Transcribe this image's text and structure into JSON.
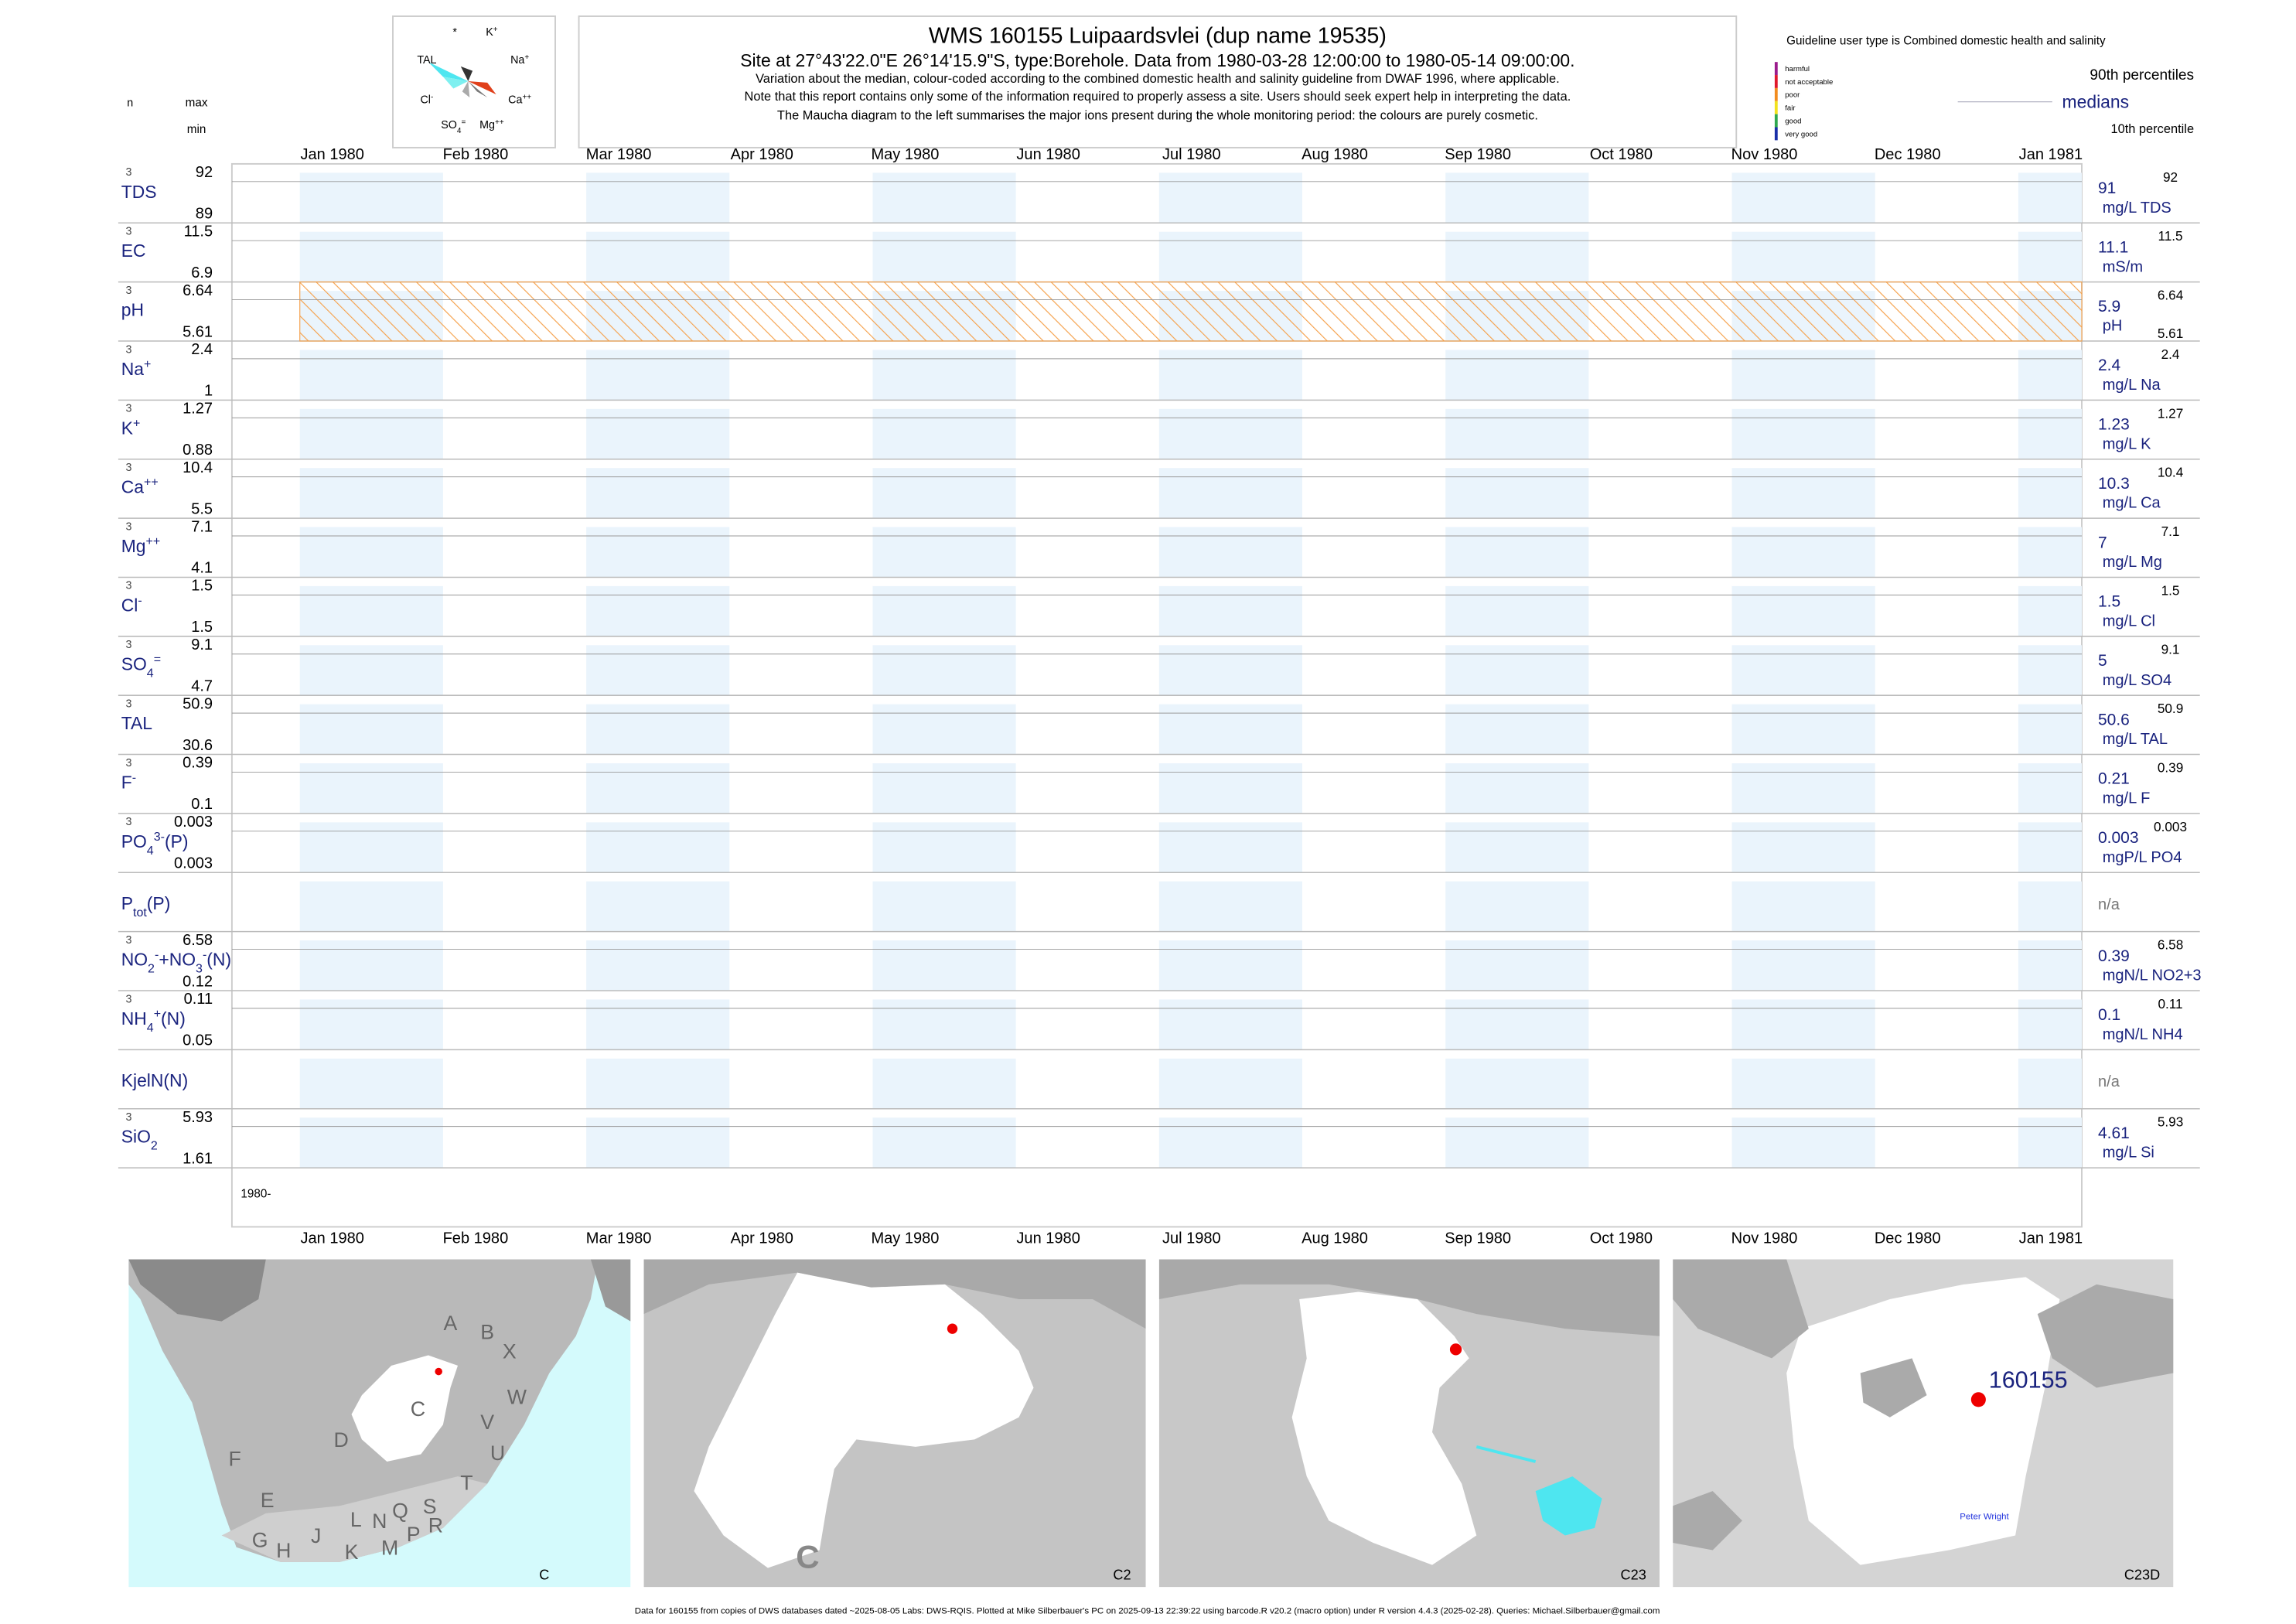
{
  "chart_data": {
    "type": "water-quality-barcode",
    "title": "WMS 160155  Luipaardsvlei (dup name 19535)",
    "subtitle": "Site at 27°43'22.0\"E 26°14'15.9\"S, type:Borehole.  Data from 1980-03-28 12:00:00 to 1980-05-14 09:00:00.",
    "notes": [
      "Variation about the median,  colour-coded according to the combined domestic health and salinity guideline from DWAF 1996, where applicable.",
      "Note that this report contains only some of the information required to properly assess a site. Users should seek expert help in interpreting the data.",
      "The Maucha diagram to the left summarises the major ions present during the whole monitoring period: the colours are purely cosmetic."
    ],
    "left_headers": {
      "n": "n",
      "max": "max",
      "min": "min"
    },
    "maucha_labels": [
      [
        {
          "text": "*"
        }
      ],
      [
        {
          "text": "K"
        },
        {
          "sup": "+"
        }
      ],
      [
        {
          "text": "TAL"
        }
      ],
      [
        {
          "text": "Na"
        },
        {
          "sup": "+"
        }
      ],
      [
        {
          "text": "Cl"
        },
        {
          "sup": "-"
        }
      ],
      [
        {
          "text": "Ca"
        },
        {
          "sup": "++"
        }
      ],
      [
        {
          "text": "SO"
        },
        {
          "sub": "4"
        },
        {
          "sup": "="
        }
      ],
      [
        {
          "text": "Mg"
        },
        {
          "sup": "++"
        }
      ]
    ],
    "guideline_title": "Guideline user type is Combined domestic health and salinity",
    "guideline_classes": [
      {
        "name": "harmful",
        "color": "#9b1b8c"
      },
      {
        "name": "not acceptable",
        "color": "#e0182b"
      },
      {
        "name": "poor",
        "color": "#f28c1e"
      },
      {
        "name": "fair",
        "color": "#f2e21e"
      },
      {
        "name": "good",
        "color": "#2fa84f"
      },
      {
        "name": "very good",
        "color": "#1a2fa8"
      }
    ],
    "percentile_legend": {
      "p90": "90th percentiles",
      "median": "medians",
      "p10": "10th percentile"
    },
    "months": [
      "Jan 1980",
      "Feb 1980",
      "Mar 1980",
      "Apr 1980",
      "May 1980",
      "Jun 1980",
      "Jul 1980",
      "Aug 1980",
      "Sep 1980",
      "Oct 1980",
      "Nov 1980",
      "Dec 1980",
      "Jan 1981"
    ],
    "year_label": "1980-",
    "shade_color": "#eaf4fc",
    "rows": [
      {
        "label": [
          {
            "text": "TDS"
          }
        ],
        "n": 3,
        "max": 92,
        "min": 89,
        "median": 91,
        "unit": "mg/L TDS",
        "p90": 92
      },
      {
        "label": [
          {
            "text": "EC"
          }
        ],
        "n": 3,
        "max": 11.5,
        "min": 6.9,
        "median": 11.1,
        "unit": "mS/m",
        "p90": 11.5
      },
      {
        "label": [
          {
            "text": "pH"
          }
        ],
        "n": 3,
        "max": 6.64,
        "min": 5.61,
        "median": 5.9,
        "unit": "pH",
        "p90": 6.64,
        "p10": 5.61,
        "band_color": "#f5a04a"
      },
      {
        "label": [
          {
            "text": "Na"
          },
          {
            "sup": "+"
          }
        ],
        "n": 3,
        "max": 2.4,
        "min": 1,
        "median": 2.4,
        "unit": "mg/L Na",
        "p90": 2.4
      },
      {
        "label": [
          {
            "text": "K"
          },
          {
            "sup": "+"
          }
        ],
        "n": 3,
        "max": 1.27,
        "min": 0.88,
        "median": 1.23,
        "unit": "mg/L K",
        "p90": 1.27
      },
      {
        "label": [
          {
            "text": "Ca"
          },
          {
            "sup": "++"
          }
        ],
        "n": 3,
        "max": 10.4,
        "min": 5.5,
        "median": 10.3,
        "unit": "mg/L Ca",
        "p90": 10.4
      },
      {
        "label": [
          {
            "text": "Mg"
          },
          {
            "sup": "++"
          }
        ],
        "n": 3,
        "max": 7.1,
        "min": 4.1,
        "median": 7,
        "unit": "mg/L Mg",
        "p90": 7.1
      },
      {
        "label": [
          {
            "text": "Cl"
          },
          {
            "sup": "-"
          }
        ],
        "n": 3,
        "max": 1.5,
        "min": 1.5,
        "median": 1.5,
        "unit": "mg/L Cl",
        "p90": 1.5
      },
      {
        "label": [
          {
            "text": "SO"
          },
          {
            "sub": "4"
          },
          {
            "sup": "="
          }
        ],
        "n": 3,
        "max": 9.1,
        "min": 4.7,
        "median": 5,
        "unit": "mg/L SO4",
        "p90": 9.1
      },
      {
        "label": [
          {
            "text": "TAL"
          }
        ],
        "n": 3,
        "max": 50.9,
        "min": 30.6,
        "median": 50.6,
        "unit": "mg/L TAL",
        "p90": 50.9
      },
      {
        "label": [
          {
            "text": "F"
          },
          {
            "sup": "-"
          }
        ],
        "n": 3,
        "max": 0.39,
        "min": 0.1,
        "median": 0.21,
        "unit": "mg/L F",
        "p90": 0.39
      },
      {
        "label": [
          {
            "text": "PO"
          },
          {
            "sub": "4"
          },
          {
            "sup": "3-"
          },
          {
            "text": "(P)"
          }
        ],
        "n": 3,
        "max": 0.003,
        "min": 0.003,
        "median": 0.003,
        "unit": "mgP/L PO4",
        "p90": 0.003
      },
      {
        "label": [
          {
            "text": "P"
          },
          {
            "sub": "tot"
          },
          {
            "text": "(P)"
          }
        ],
        "na": "n/a"
      },
      {
        "label": [
          {
            "text": "NO"
          },
          {
            "sub": "2"
          },
          {
            "sup": "-"
          },
          {
            "text": "+NO"
          },
          {
            "sub": "3"
          },
          {
            "sup": "-"
          },
          {
            "text": "(N)"
          }
        ],
        "n": 3,
        "max": 6.58,
        "min": 0.12,
        "median": 0.39,
        "unit": "mgN/L NO2+3",
        "p90": 6.58
      },
      {
        "label": [
          {
            "text": "NH"
          },
          {
            "sub": "4"
          },
          {
            "sup": "+"
          },
          {
            "text": "(N)"
          }
        ],
        "n": 3,
        "max": 0.11,
        "min": 0.05,
        "median": 0.1,
        "unit": "mgN/L NH4",
        "p90": 0.11
      },
      {
        "label": [
          {
            "text": "KjelN(N)"
          }
        ],
        "na": "n/a"
      },
      {
        "label": [
          {
            "text": "SiO"
          },
          {
            "sub": "2"
          }
        ],
        "n": 3,
        "max": 5.93,
        "min": 1.61,
        "median": 4.61,
        "unit": "mg/L Si",
        "p90": 5.93
      }
    ],
    "maps": [
      {
        "label": "C",
        "letters": [
          "A",
          "B",
          "X",
          "W",
          "C",
          "D",
          "V",
          "U",
          "T",
          "F",
          "E",
          "G",
          "H",
          "J",
          "K",
          "L",
          "N",
          "Q",
          "M",
          "P",
          "R",
          "S"
        ]
      },
      {
        "label": "C2",
        "big_letter": "C"
      },
      {
        "label": "C23"
      },
      {
        "label": "C23D",
        "site": "160155",
        "place": "Peter Wright"
      }
    ],
    "footer": "Data for 160155 from copies of DWS databases dated ~2025-08-05 Labs: DWS-RQIS. Plotted at Mike Silberbauer's PC on 2025-09-13 22:39:22 using barcode.R v20.2 (macro option) under R version 4.4.3 (2025-02-28). Queries: Michael.Silberbauer@gmail.com"
  }
}
